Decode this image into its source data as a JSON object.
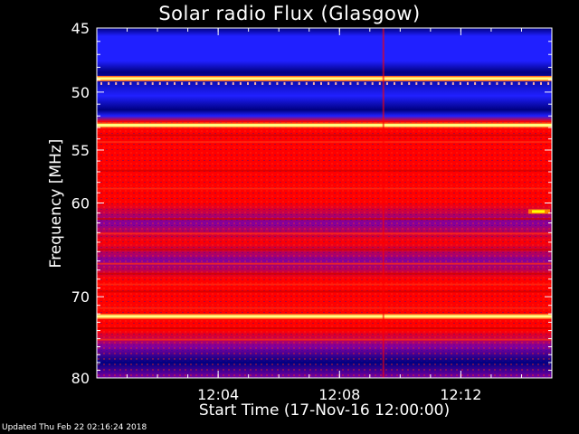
{
  "updated_text": "Updated Thu Feb 22 02:16:24 2018",
  "chart_data": {
    "type": "heatmap",
    "title": "Solar radio Flux (Glasgow)",
    "xlabel": "Start Time (17-Nov-16 12:00:00)",
    "ylabel": "Frequency [MHz]",
    "y_axis": {
      "scale": "log",
      "inverted": true,
      "range": [
        45,
        80
      ],
      "ticks": [
        45,
        50,
        55,
        60,
        70,
        80
      ]
    },
    "x_axis": {
      "range": [
        "12:00:00",
        "12:15:00"
      ],
      "ticks": [
        "12:04",
        "12:08",
        "12:12"
      ]
    },
    "colormap": [
      "#000080",
      "#2020ff",
      "#8000a0",
      "#ff0000",
      "#ffff80"
    ],
    "features": [
      {
        "name": "bright band",
        "freq_mhz": 48.9,
        "color": "#ffff80"
      },
      {
        "name": "bright band",
        "freq_mhz": 52.8,
        "color": "#ffff80"
      },
      {
        "name": "bright band",
        "freq_mhz": 72.3,
        "color": "#ffff80"
      },
      {
        "name": "vertical streak",
        "time": "12:09:25",
        "color": "#ff0000"
      },
      {
        "name": "burst",
        "time": "12:14:35",
        "freq_mhz": 60.8,
        "color": "#ffff00"
      }
    ]
  }
}
